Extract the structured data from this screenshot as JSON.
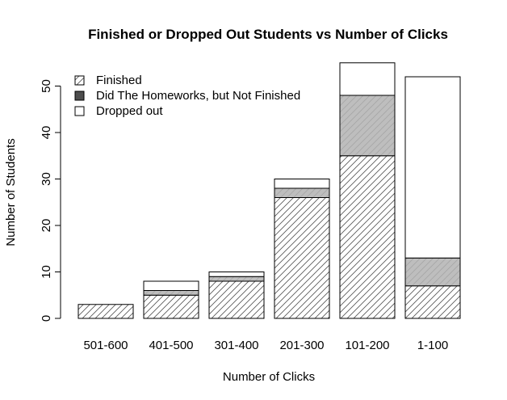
{
  "chart_data": {
    "type": "bar",
    "stacked": true,
    "title": "Finished or Dropped Out Students vs Number of Clicks",
    "xlabel": "Number of Clicks",
    "ylabel": "Number of Students",
    "categories": [
      "501-600",
      "401-500",
      "301-400",
      "201-300",
      "101-200",
      "1-100"
    ],
    "ylim": [
      0,
      55
    ],
    "yticks": [
      0,
      10,
      20,
      30,
      40,
      50
    ],
    "legend_position": "top-left",
    "series": [
      {
        "name": "Finished",
        "values": [
          3,
          5,
          8,
          26,
          35,
          7
        ],
        "fill": "hatched",
        "color": "#ffffff"
      },
      {
        "name": "Did The Homeworks, but Not Finished",
        "values": [
          0,
          1,
          1,
          2,
          13,
          6
        ],
        "fill": "solid",
        "color": "#bebebe",
        "legend_color": "#4d4d4d"
      },
      {
        "name": "Dropped out",
        "values": [
          0,
          2,
          1,
          2,
          7,
          39
        ],
        "fill": "solid",
        "color": "#ffffff"
      }
    ]
  }
}
